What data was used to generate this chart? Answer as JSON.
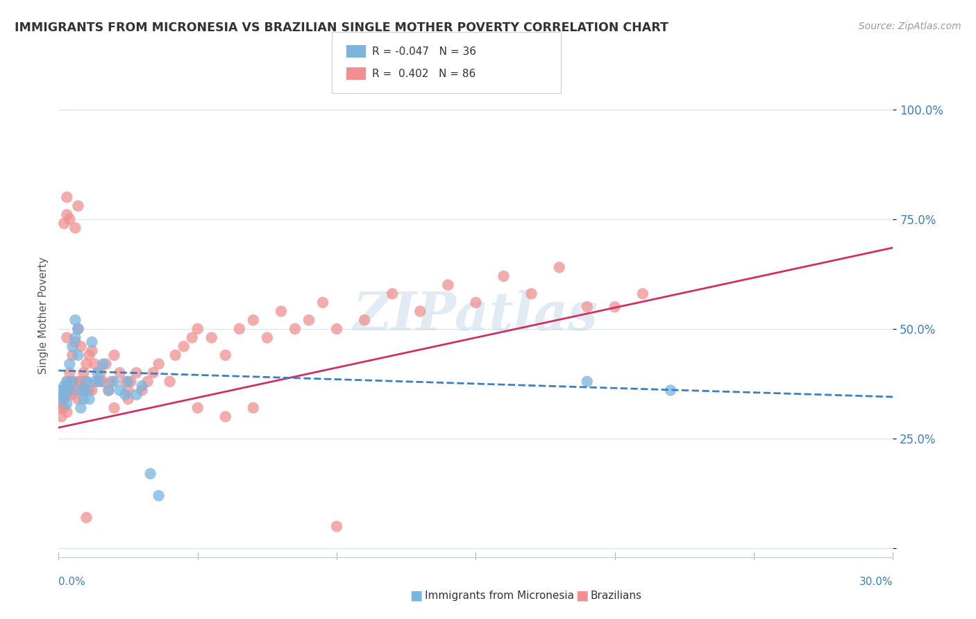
{
  "title": "IMMIGRANTS FROM MICRONESIA VS BRAZILIAN SINGLE MOTHER POVERTY CORRELATION CHART",
  "source_text": "Source: ZipAtlas.com",
  "ylabel": "Single Mother Poverty",
  "legend_label1": "Immigrants from Micronesia",
  "legend_label2": "Brazilians",
  "watermark": "ZIPatlas",
  "blue_color": "#7ab5e0",
  "pink_color": "#f09090",
  "blue_line_color": "#3a7fc0",
  "pink_line_color": "#d03060",
  "background_color": "#ffffff",
  "grid_color": "#d5e5f0",
  "xlim": [
    0.0,
    0.3
  ],
  "ylim": [
    -0.02,
    1.08
  ],
  "ytick_vals": [
    0.0,
    0.25,
    0.5,
    0.75,
    1.0
  ],
  "ytick_labels": [
    "",
    "25.0%",
    "50.0%",
    "75.0%",
    "100.0%"
  ],
  "blue_line_y0": 0.405,
  "blue_line_y1": 0.345,
  "pink_line_y0": 0.275,
  "pink_line_y1": 0.685,
  "blue_x": [
    0.001,
    0.001,
    0.002,
    0.002,
    0.003,
    0.003,
    0.004,
    0.004,
    0.005,
    0.005,
    0.006,
    0.006,
    0.007,
    0.007,
    0.008,
    0.008,
    0.009,
    0.01,
    0.01,
    0.011,
    0.012,
    0.013,
    0.014,
    0.015,
    0.016,
    0.018,
    0.02,
    0.022,
    0.024,
    0.025,
    0.028,
    0.03,
    0.033,
    0.036,
    0.19,
    0.22
  ],
  "blue_y": [
    0.36,
    0.34,
    0.37,
    0.35,
    0.38,
    0.33,
    0.42,
    0.36,
    0.46,
    0.38,
    0.52,
    0.48,
    0.5,
    0.44,
    0.36,
    0.32,
    0.34,
    0.38,
    0.36,
    0.34,
    0.47,
    0.38,
    0.4,
    0.38,
    0.42,
    0.36,
    0.38,
    0.36,
    0.35,
    0.38,
    0.35,
    0.37,
    0.17,
    0.12,
    0.38,
    0.36
  ],
  "pink_x": [
    0.001,
    0.001,
    0.001,
    0.002,
    0.002,
    0.002,
    0.003,
    0.003,
    0.003,
    0.004,
    0.004,
    0.005,
    0.005,
    0.005,
    0.006,
    0.006,
    0.007,
    0.007,
    0.008,
    0.008,
    0.009,
    0.009,
    0.01,
    0.01,
    0.011,
    0.011,
    0.012,
    0.013,
    0.014,
    0.015,
    0.016,
    0.017,
    0.018,
    0.019,
    0.02,
    0.022,
    0.024,
    0.025,
    0.026,
    0.028,
    0.03,
    0.032,
    0.034,
    0.036,
    0.04,
    0.042,
    0.045,
    0.048,
    0.05,
    0.055,
    0.06,
    0.065,
    0.07,
    0.075,
    0.08,
    0.085,
    0.09,
    0.095,
    0.1,
    0.11,
    0.12,
    0.13,
    0.14,
    0.15,
    0.16,
    0.17,
    0.18,
    0.19,
    0.2,
    0.21,
    0.003,
    0.007,
    0.012,
    0.02,
    0.025,
    0.05,
    0.06,
    0.07,
    0.003,
    0.007,
    0.01,
    0.1,
    0.003,
    0.004,
    0.002,
    0.006
  ],
  "pink_y": [
    0.32,
    0.33,
    0.3,
    0.36,
    0.34,
    0.32,
    0.38,
    0.35,
    0.31,
    0.4,
    0.36,
    0.38,
    0.44,
    0.35,
    0.47,
    0.36,
    0.5,
    0.38,
    0.46,
    0.38,
    0.4,
    0.36,
    0.42,
    0.38,
    0.44,
    0.36,
    0.45,
    0.42,
    0.38,
    0.4,
    0.38,
    0.42,
    0.36,
    0.38,
    0.44,
    0.4,
    0.38,
    0.36,
    0.38,
    0.4,
    0.36,
    0.38,
    0.4,
    0.42,
    0.38,
    0.44,
    0.46,
    0.48,
    0.5,
    0.48,
    0.44,
    0.5,
    0.52,
    0.48,
    0.54,
    0.5,
    0.52,
    0.56,
    0.5,
    0.52,
    0.58,
    0.54,
    0.6,
    0.56,
    0.62,
    0.58,
    0.64,
    0.55,
    0.55,
    0.58,
    0.48,
    0.34,
    0.36,
    0.32,
    0.34,
    0.32,
    0.3,
    0.32,
    0.8,
    0.78,
    0.07,
    0.05,
    0.76,
    0.75,
    0.74,
    0.73
  ]
}
